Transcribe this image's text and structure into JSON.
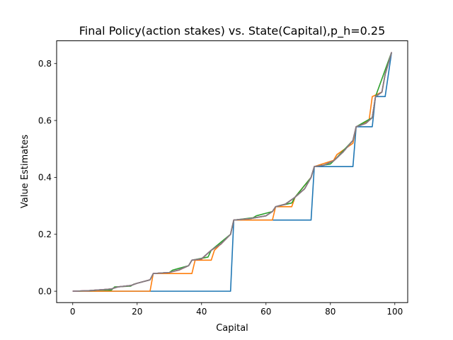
{
  "chart_data": {
    "type": "line",
    "title": "Final Policy(action stakes) vs. State(Capital),p_h=0.25",
    "xlabel": "Capital",
    "ylabel": "Value Estimates",
    "xlim": [
      -5,
      104
    ],
    "ylim": [
      -0.04,
      0.88
    ],
    "xticks": [
      0,
      20,
      40,
      60,
      80,
      100
    ],
    "yticks": [
      0.0,
      0.2,
      0.4,
      0.6,
      0.8
    ],
    "xtick_labels": [
      "0",
      "20",
      "40",
      "60",
      "80",
      "100"
    ],
    "ytick_labels": [
      "0.0",
      "0.2",
      "0.4",
      "0.6",
      "0.8"
    ],
    "grid": false,
    "legend": "none",
    "series": [
      {
        "color": "#1f77b4",
        "x": [
          0,
          49,
          50,
          74,
          75,
          87,
          88,
          93,
          94,
          97,
          98,
          99
        ],
        "y": [
          0.0,
          0.0,
          0.25,
          0.25,
          0.438,
          0.438,
          0.578,
          0.578,
          0.684,
          0.684,
          0.762,
          0.84
        ]
      },
      {
        "color": "#ff7f0e",
        "x": [
          0,
          24,
          25,
          37,
          38,
          43,
          44,
          49,
          50,
          55,
          56,
          62,
          63,
          68,
          69,
          74,
          75,
          81,
          82,
          87,
          88,
          92,
          93,
          96,
          97,
          99
        ],
        "y": [
          0.0,
          0.0,
          0.062,
          0.062,
          0.109,
          0.109,
          0.144,
          0.2,
          0.25,
          0.25,
          0.25,
          0.25,
          0.297,
          0.297,
          0.33,
          0.4,
          0.438,
          0.46,
          0.48,
          0.52,
          0.578,
          0.6,
          0.684,
          0.7,
          0.762,
          0.84
        ]
      },
      {
        "color": "#2ca02c",
        "x": [
          0,
          6,
          8,
          12,
          13,
          18,
          19,
          24,
          25,
          30,
          31,
          36,
          37,
          42,
          43,
          49,
          50,
          56,
          57,
          62,
          63,
          68,
          69,
          74,
          75,
          80,
          81,
          87,
          88,
          93,
          94,
          99
        ],
        "y": [
          0.0,
          0.002,
          0.004,
          0.004,
          0.015,
          0.018,
          0.025,
          0.04,
          0.062,
          0.066,
          0.074,
          0.09,
          0.109,
          0.12,
          0.144,
          0.2,
          0.25,
          0.258,
          0.265,
          0.28,
          0.297,
          0.31,
          0.33,
          0.4,
          0.438,
          0.447,
          0.458,
          0.53,
          0.578,
          0.61,
          0.684,
          0.84
        ]
      },
      {
        "color": "#d62728",
        "x": [
          0,
          5,
          10,
          12,
          14,
          18,
          20,
          24,
          25,
          30,
          33,
          36,
          37,
          40,
          43,
          46,
          49,
          50,
          55,
          60,
          62,
          63,
          66,
          69,
          72,
          74,
          75,
          78,
          81,
          84,
          87,
          88,
          91,
          93,
          94,
          96,
          97,
          99
        ],
        "y": [
          0.0,
          0.002,
          0.006,
          0.008,
          0.015,
          0.02,
          0.028,
          0.04,
          0.062,
          0.066,
          0.074,
          0.09,
          0.109,
          0.113,
          0.144,
          0.165,
          0.2,
          0.25,
          0.255,
          0.265,
          0.28,
          0.297,
          0.305,
          0.33,
          0.36,
          0.4,
          0.438,
          0.443,
          0.458,
          0.49,
          0.53,
          0.578,
          0.59,
          0.61,
          0.684,
          0.7,
          0.762,
          0.84
        ]
      },
      {
        "color": "#9467bd",
        "x": [
          0,
          5,
          10,
          12,
          14,
          18,
          20,
          24,
          25,
          30,
          33,
          36,
          37,
          40,
          43,
          46,
          49,
          50,
          55,
          60,
          62,
          63,
          66,
          69,
          72,
          74,
          75,
          78,
          81,
          84,
          87,
          88,
          91,
          93,
          94,
          96,
          97,
          99
        ],
        "y": [
          0.0,
          0.002,
          0.006,
          0.008,
          0.015,
          0.02,
          0.028,
          0.04,
          0.062,
          0.066,
          0.075,
          0.09,
          0.109,
          0.114,
          0.144,
          0.166,
          0.2,
          0.25,
          0.255,
          0.265,
          0.28,
          0.297,
          0.306,
          0.33,
          0.36,
          0.4,
          0.438,
          0.443,
          0.458,
          0.49,
          0.53,
          0.578,
          0.59,
          0.61,
          0.684,
          0.7,
          0.762,
          0.84
        ]
      },
      {
        "color": "#8c564b",
        "x": [
          0,
          5,
          10,
          12,
          14,
          18,
          20,
          24,
          25,
          30,
          33,
          36,
          37,
          40,
          43,
          46,
          49,
          50,
          55,
          60,
          62,
          63,
          66,
          69,
          72,
          74,
          75,
          78,
          81,
          84,
          87,
          88,
          91,
          93,
          94,
          96,
          97,
          99
        ],
        "y": [
          0.0,
          0.002,
          0.006,
          0.008,
          0.015,
          0.02,
          0.028,
          0.04,
          0.062,
          0.066,
          0.075,
          0.09,
          0.109,
          0.114,
          0.144,
          0.166,
          0.2,
          0.25,
          0.255,
          0.265,
          0.28,
          0.297,
          0.306,
          0.33,
          0.36,
          0.4,
          0.438,
          0.443,
          0.458,
          0.49,
          0.53,
          0.578,
          0.59,
          0.61,
          0.684,
          0.7,
          0.762,
          0.84
        ]
      },
      {
        "color": "#e377c2",
        "x": [
          0,
          5,
          10,
          12,
          14,
          18,
          20,
          24,
          25,
          30,
          33,
          36,
          37,
          40,
          43,
          46,
          49,
          50,
          55,
          60,
          62,
          63,
          66,
          69,
          72,
          74,
          75,
          78,
          81,
          84,
          87,
          88,
          91,
          93,
          94,
          96,
          97,
          99
        ],
        "y": [
          0.0,
          0.002,
          0.006,
          0.008,
          0.015,
          0.02,
          0.028,
          0.04,
          0.062,
          0.066,
          0.075,
          0.09,
          0.109,
          0.114,
          0.144,
          0.166,
          0.2,
          0.25,
          0.255,
          0.265,
          0.28,
          0.297,
          0.306,
          0.33,
          0.36,
          0.4,
          0.438,
          0.443,
          0.458,
          0.49,
          0.53,
          0.578,
          0.59,
          0.61,
          0.684,
          0.7,
          0.762,
          0.84
        ]
      },
      {
        "color": "#7f7f7f",
        "x": [
          0,
          5,
          10,
          12,
          14,
          18,
          20,
          24,
          25,
          30,
          33,
          36,
          37,
          40,
          43,
          46,
          49,
          50,
          55,
          60,
          62,
          63,
          66,
          69,
          72,
          74,
          75,
          78,
          81,
          84,
          87,
          88,
          91,
          93,
          94,
          96,
          97,
          99
        ],
        "y": [
          0.0,
          0.002,
          0.006,
          0.008,
          0.015,
          0.02,
          0.028,
          0.04,
          0.062,
          0.066,
          0.075,
          0.09,
          0.109,
          0.114,
          0.144,
          0.166,
          0.2,
          0.25,
          0.255,
          0.265,
          0.28,
          0.297,
          0.306,
          0.33,
          0.36,
          0.4,
          0.438,
          0.443,
          0.458,
          0.49,
          0.53,
          0.578,
          0.59,
          0.61,
          0.684,
          0.7,
          0.762,
          0.84
        ]
      }
    ]
  }
}
